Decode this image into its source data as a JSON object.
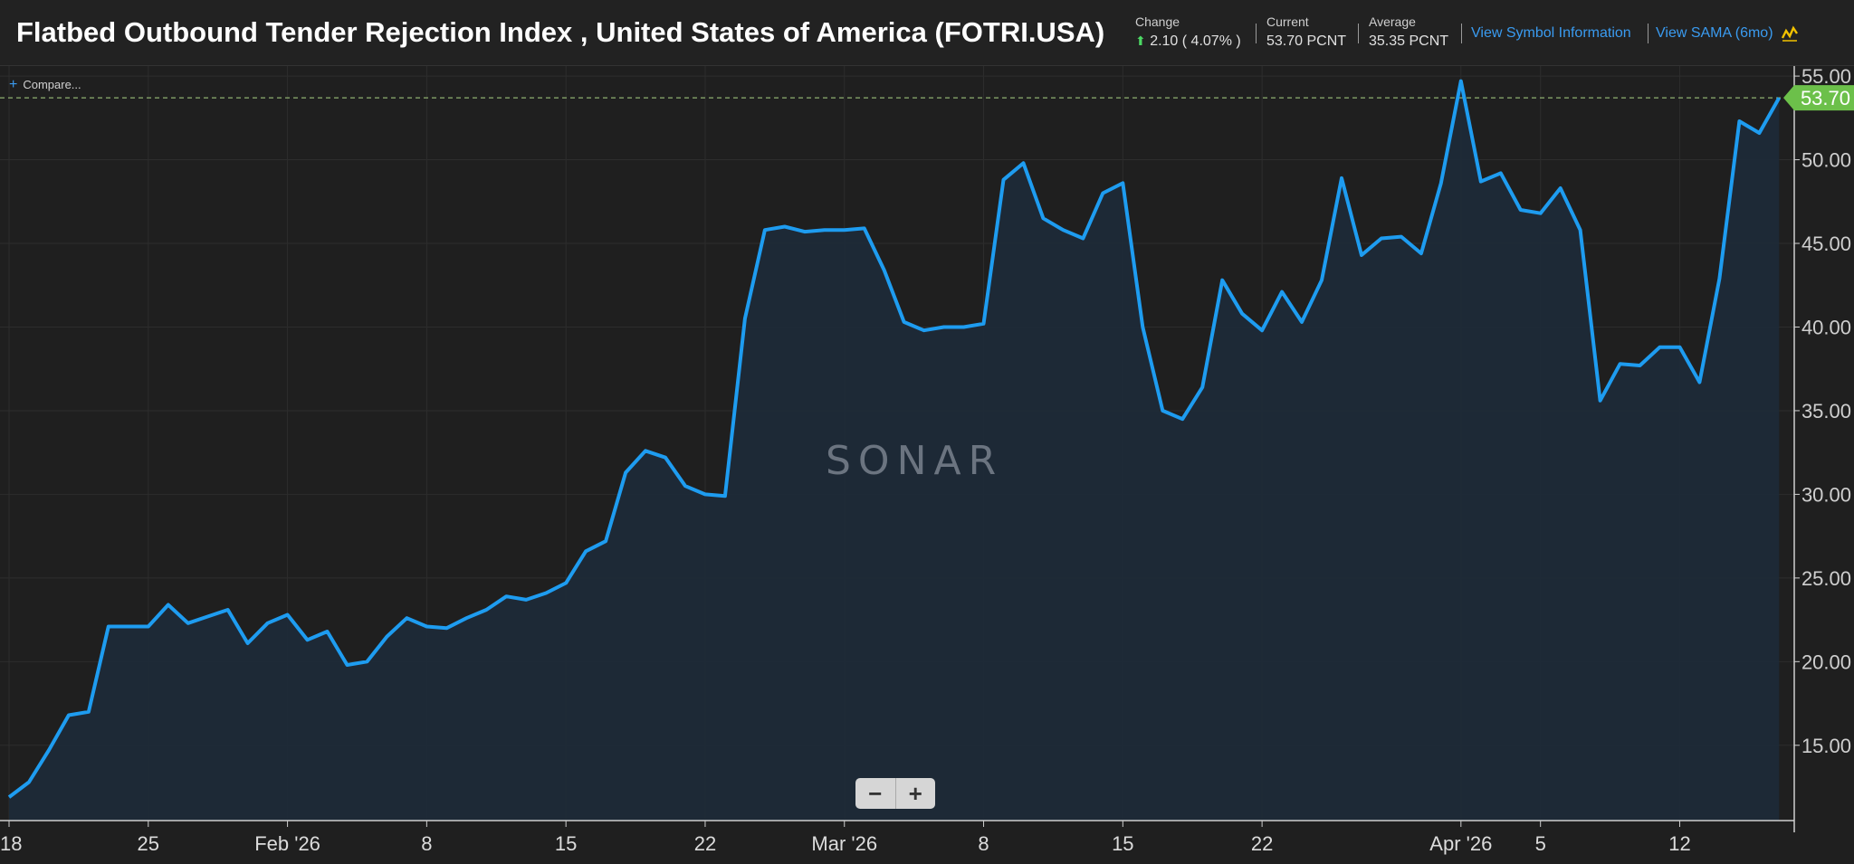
{
  "header": {
    "title": "Flatbed Outbound Tender Rejection Index , United States of America (FOTRI.USA)",
    "change_label": "Change",
    "change_arrow": "⬆",
    "change_value": "2.10 ( 4.07% )",
    "current_label": "Current",
    "current_value": "53.70 PCNT",
    "average_label": "Average",
    "average_value": "35.35 PCNT",
    "symbol_info_link": "View Symbol Information",
    "sama_link": "View SAMA (6mo)",
    "sama_icon": "chart-wave-icon"
  },
  "compare": {
    "icon": "plus-icon",
    "label": "Compare..."
  },
  "watermark": "SONAR",
  "zoom": {
    "minus": "−",
    "plus": "+"
  },
  "colors": {
    "line": "#1e9cf0",
    "area": "#1e2a38",
    "last_badge": "#6cc04a",
    "grid": "#2d2d2d",
    "ref_line": "#8fb070"
  },
  "chart_data": {
    "type": "area",
    "title": "Flatbed Outbound Tender Rejection Index , United States of America (FOTRI.USA)",
    "ylabel": "PCNT",
    "ylim": [
      10.5,
      55.6
    ],
    "yticks": [
      "15.00",
      "20.00",
      "25.00",
      "30.00",
      "35.00",
      "40.00",
      "45.00",
      "50.00",
      "55.00"
    ],
    "ytick_values": [
      15,
      20,
      25,
      30,
      35,
      40,
      45,
      50,
      55
    ],
    "xticks": [
      {
        "label": "18",
        "day": 0
      },
      {
        "label": "25",
        "day": 7
      },
      {
        "label": "Feb '26",
        "day": 14
      },
      {
        "label": "8",
        "day": 21
      },
      {
        "label": "15",
        "day": 28
      },
      {
        "label": "22",
        "day": 35
      },
      {
        "label": "Mar '26",
        "day": 42
      },
      {
        "label": "8",
        "day": 49
      },
      {
        "label": "15",
        "day": 56
      },
      {
        "label": "22",
        "day": 63
      },
      {
        "label": "Apr '26",
        "day": 73
      },
      {
        "label": "5",
        "day": 77
      },
      {
        "label": "12",
        "day": 84
      }
    ],
    "x_days": [
      0,
      1,
      2,
      3,
      4,
      5,
      6,
      7,
      8,
      9,
      10,
      11,
      12,
      13,
      14,
      15,
      16,
      17,
      18,
      19,
      20,
      21,
      22,
      23,
      24,
      25,
      26,
      27,
      28,
      29,
      30,
      31,
      32,
      33,
      34,
      35,
      36,
      37,
      38,
      39,
      40,
      41,
      42,
      43,
      44,
      45,
      46,
      47,
      48,
      49,
      50,
      51,
      52,
      53,
      54,
      55,
      56,
      57,
      58,
      59,
      60,
      61,
      62,
      63,
      64,
      65,
      66,
      67,
      68,
      69,
      70,
      71,
      72,
      73,
      74,
      75,
      76,
      77,
      78,
      79,
      80,
      81,
      82,
      83,
      84,
      85,
      86,
      87,
      88,
      89
    ],
    "series": [
      {
        "name": "FOTRI.USA",
        "values": [
          11.9,
          12.8,
          14.7,
          16.8,
          17.0,
          22.1,
          22.1,
          22.1,
          23.4,
          22.3,
          22.7,
          23.1,
          21.1,
          22.3,
          22.8,
          21.3,
          21.8,
          19.8,
          20.0,
          21.5,
          22.6,
          22.1,
          22.0,
          22.6,
          23.1,
          23.9,
          23.7,
          24.1,
          24.7,
          26.6,
          27.2,
          31.3,
          32.6,
          32.2,
          30.5,
          30.0,
          29.9,
          40.5,
          45.8,
          46.0,
          45.7,
          45.8,
          45.8,
          45.9,
          43.4,
          40.3,
          39.8,
          40.0,
          40.0,
          40.2,
          48.8,
          49.8,
          46.5,
          45.8,
          45.3,
          48.0,
          48.6,
          40.0,
          35.0,
          34.5,
          36.4,
          42.8,
          40.8,
          39.8,
          42.1,
          40.3,
          42.8,
          48.9,
          44.3,
          45.3,
          45.4,
          44.4,
          48.6,
          54.7,
          48.7,
          49.2,
          47.0,
          46.8,
          48.3,
          45.8,
          35.6,
          37.8,
          37.7,
          38.8,
          38.8,
          36.7,
          42.9,
          52.3,
          51.6,
          53.7
        ]
      }
    ],
    "last_value_label": "53.70",
    "last_value": 53.7
  }
}
